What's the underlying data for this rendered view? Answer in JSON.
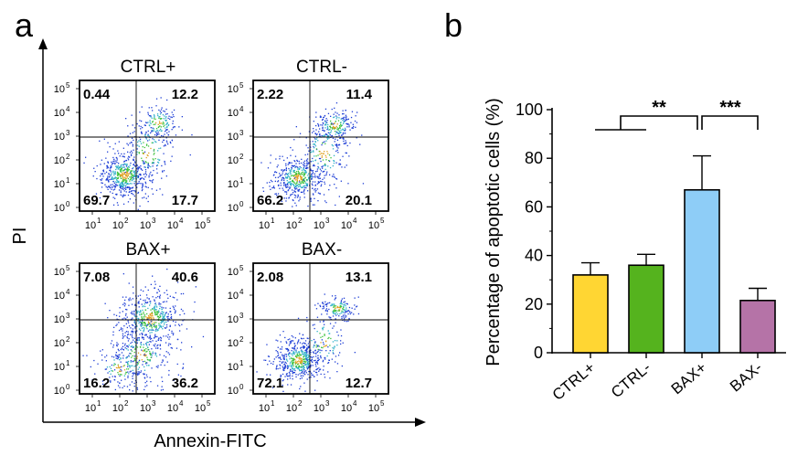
{
  "panels": {
    "a": "a",
    "b": "b"
  },
  "panel_a": {
    "x_axis_title": "Annexin-FITC",
    "y_axis_title": "PI",
    "tick_base": "10",
    "tick_exponents": [
      "0",
      "1",
      "2",
      "3",
      "4",
      "5"
    ],
    "plots": [
      {
        "title": "CTRL+",
        "quadrants": {
          "upper_left": "0.44",
          "upper_right": "12.2",
          "lower_left": "69.7",
          "lower_right": "17.7"
        }
      },
      {
        "title": "CTRL-",
        "quadrants": {
          "upper_left": "2.22",
          "upper_right": "11.4",
          "lower_left": "66.2",
          "lower_right": "20.1"
        }
      },
      {
        "title": "BAX+",
        "quadrants": {
          "upper_left": "7.08",
          "upper_right": "40.6",
          "lower_left": "16.2",
          "lower_right": "36.2"
        }
      },
      {
        "title": "BAX-",
        "quadrants": {
          "upper_left": "2.08",
          "upper_right": "13.1",
          "lower_left": "72.1",
          "lower_right": "12.7"
        }
      }
    ]
  },
  "chart_data": {
    "type": "bar",
    "title": "",
    "xlabel": "",
    "ylabel": "Percentage of apoptotic cells (%)",
    "categories": [
      "CTRL+",
      "CTRL-",
      "BAX+",
      "BAX-"
    ],
    "values": [
      32,
      36,
      67,
      21.5
    ],
    "errors": [
      5,
      4.5,
      14,
      5
    ],
    "colors": [
      "#ffd633",
      "#55b31e",
      "#8ecdf7",
      "#b573a7"
    ],
    "ylim": [
      0,
      100
    ],
    "yticks": [
      0,
      20,
      40,
      60,
      80,
      100
    ],
    "significance": [
      {
        "label": "**",
        "between": [
          "CTRL+ / CTRL-",
          "BAX+"
        ]
      },
      {
        "label": "***",
        "between": [
          "BAX+",
          "BAX-"
        ]
      }
    ]
  }
}
